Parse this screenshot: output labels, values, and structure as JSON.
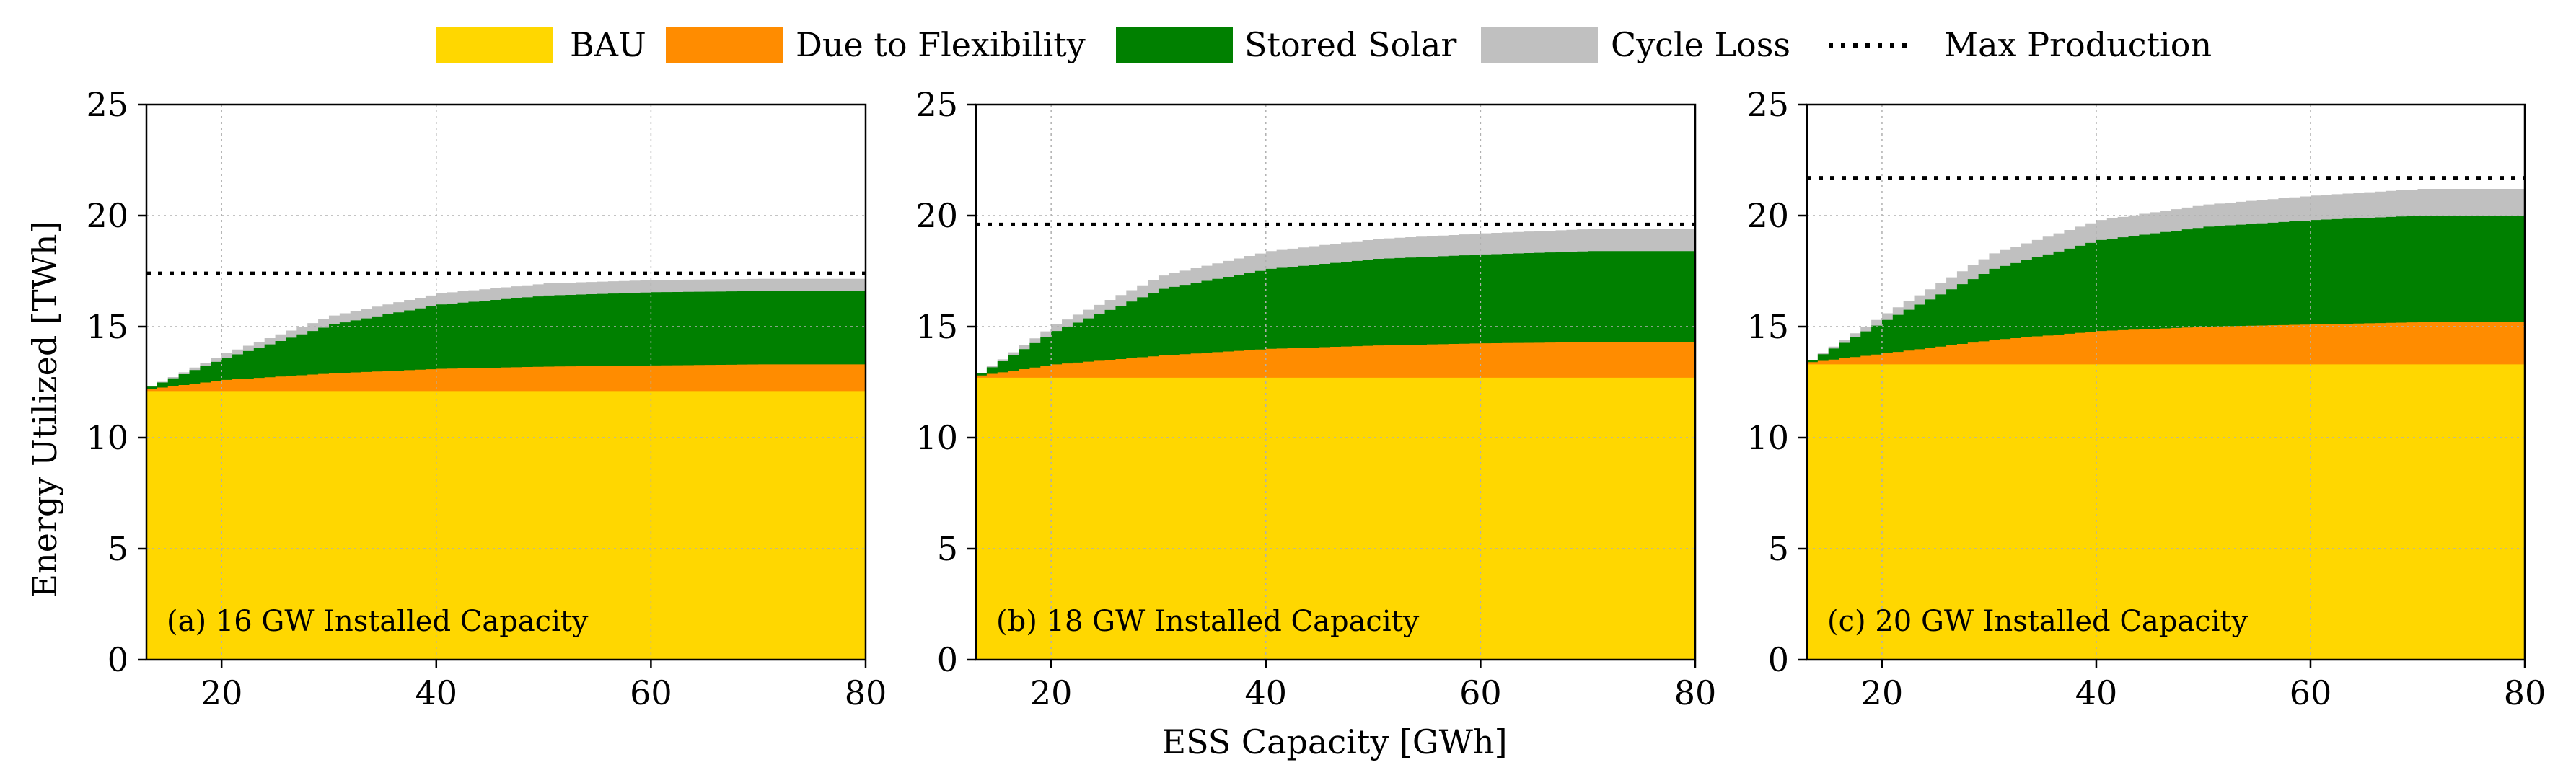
{
  "legend": [
    {
      "key": "bau",
      "label": "BAU",
      "type": "patch",
      "color": "#FFD700"
    },
    {
      "key": "flex",
      "label": "Due to Flexibility",
      "type": "patch",
      "color": "#FF8C00"
    },
    {
      "key": "solar",
      "label": "Stored Solar",
      "type": "patch",
      "color": "#008000"
    },
    {
      "key": "loss",
      "label": "Cycle Loss",
      "type": "patch",
      "color": "#C0C0C0"
    },
    {
      "key": "max",
      "label": "Max Production",
      "type": "line",
      "color": "#000000"
    }
  ],
  "shared": {
    "ylabel": "Energy Utilized [TWh]",
    "xlabel": "ESS Capacity [GWh]",
    "x_ticks": [
      20,
      40,
      60,
      80
    ],
    "y_ticks": [
      0,
      5,
      10,
      15,
      20,
      25
    ]
  },
  "chart_data": [
    {
      "type": "area",
      "stacked": true,
      "title": "(a) 16 GW Installed Capacity",
      "xlim": [
        13,
        80
      ],
      "ylim": [
        0,
        25
      ],
      "grid": true,
      "x": [
        13,
        20,
        30,
        40,
        50,
        60,
        70,
        80
      ],
      "series": [
        {
          "name": "BAU",
          "values": [
            12.1,
            12.1,
            12.1,
            12.1,
            12.1,
            12.1,
            12.1,
            12.1
          ]
        },
        {
          "name": "Due to Flexibility",
          "values": [
            0.1,
            0.5,
            0.8,
            1.0,
            1.1,
            1.15,
            1.2,
            1.2
          ]
        },
        {
          "name": "Stored Solar",
          "values": [
            0.1,
            1.0,
            2.2,
            2.9,
            3.2,
            3.3,
            3.3,
            3.3
          ]
        },
        {
          "name": "Cycle Loss",
          "values": [
            0.0,
            0.2,
            0.4,
            0.5,
            0.55,
            0.55,
            0.55,
            0.55
          ]
        }
      ],
      "max_production": 17.4
    },
    {
      "type": "area",
      "stacked": true,
      "title": "(b) 18 GW Installed Capacity",
      "xlim": [
        13,
        80
      ],
      "ylim": [
        0,
        25
      ],
      "grid": true,
      "x": [
        13,
        20,
        30,
        40,
        50,
        60,
        70,
        80
      ],
      "series": [
        {
          "name": "BAU",
          "values": [
            12.7,
            12.7,
            12.7,
            12.7,
            12.7,
            12.7,
            12.7,
            12.7
          ]
        },
        {
          "name": "Due to Flexibility",
          "values": [
            0.1,
            0.6,
            1.0,
            1.3,
            1.45,
            1.55,
            1.6,
            1.6
          ]
        },
        {
          "name": "Stored Solar",
          "values": [
            0.1,
            1.5,
            3.0,
            3.6,
            3.9,
            4.0,
            4.1,
            4.1
          ]
        },
        {
          "name": "Cycle Loss",
          "values": [
            0.0,
            0.3,
            0.6,
            0.8,
            0.9,
            0.95,
            1.0,
            1.0
          ]
        }
      ],
      "max_production": 19.6
    },
    {
      "type": "area",
      "stacked": true,
      "title": "(c) 20 GW Installed Capacity",
      "xlim": [
        13,
        80
      ],
      "ylim": [
        0,
        25
      ],
      "grid": true,
      "x": [
        13,
        20,
        30,
        40,
        50,
        60,
        70,
        80
      ],
      "series": [
        {
          "name": "BAU",
          "values": [
            13.3,
            13.3,
            13.3,
            13.3,
            13.3,
            13.3,
            13.3,
            13.3
          ]
        },
        {
          "name": "Due to Flexibility",
          "values": [
            0.1,
            0.5,
            1.1,
            1.5,
            1.7,
            1.8,
            1.9,
            1.9
          ]
        },
        {
          "name": "Stored Solar",
          "values": [
            0.1,
            1.5,
            3.2,
            4.1,
            4.5,
            4.7,
            4.8,
            4.8
          ]
        },
        {
          "name": "Cycle Loss",
          "values": [
            0.0,
            0.3,
            0.7,
            0.9,
            1.0,
            1.1,
            1.2,
            1.2
          ]
        }
      ],
      "max_production": 21.7
    }
  ]
}
